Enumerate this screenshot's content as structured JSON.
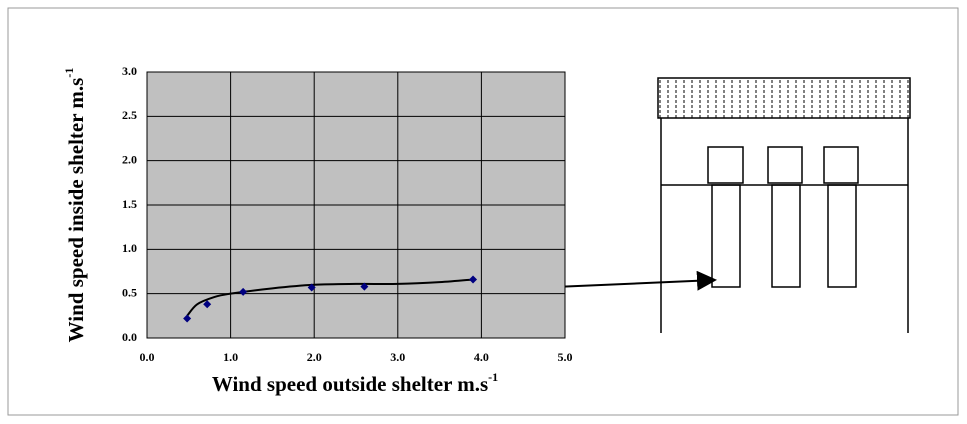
{
  "chart_data": {
    "type": "scatter",
    "x_label": "Wind speed outside shelter m.s",
    "x_label_sup": "-1",
    "y_label": "Wind speed inside shelter m.s",
    "y_label_sup": "-1",
    "x": [
      0.48,
      0.72,
      1.15,
      1.97,
      2.6,
      3.9
    ],
    "values": [
      0.22,
      0.38,
      0.52,
      0.57,
      0.58,
      0.66
    ],
    "color": "#000080",
    "trendline": {
      "x": [
        0.48,
        0.6,
        0.8,
        1.0,
        1.5,
        2.0,
        2.5,
        3.0,
        3.5,
        3.9
      ],
      "values": [
        0.25,
        0.38,
        0.46,
        0.5,
        0.56,
        0.6,
        0.61,
        0.61,
        0.63,
        0.66
      ]
    },
    "xlim": [
      0,
      5
    ],
    "ylim": [
      0,
      3
    ],
    "xticks": [
      {
        "value": 0,
        "label": "0.0"
      },
      {
        "value": 1,
        "label": "1.0"
      },
      {
        "value": 2,
        "label": "2.0"
      },
      {
        "value": 3,
        "label": "3.0"
      },
      {
        "value": 4,
        "label": "4.0"
      },
      {
        "value": 5,
        "label": "5.0"
      }
    ],
    "yticks": [
      {
        "value": 0,
        "label": "0.0"
      },
      0.5,
      {
        "value": 1,
        "label": "1.0"
      },
      1.5,
      {
        "value": 2,
        "label": "2.0"
      },
      2.5,
      {
        "value": 3,
        "label": "3.0"
      }
    ],
    "grid": true,
    "plot_background": "#c0c0c0"
  }
}
